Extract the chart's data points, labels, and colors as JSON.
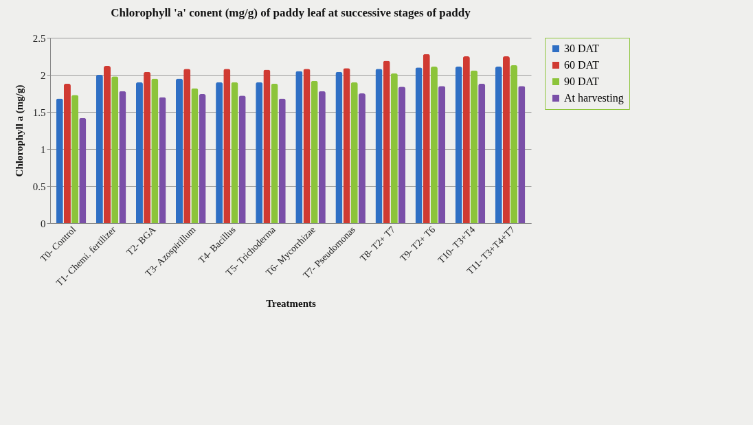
{
  "chart_data": {
    "type": "bar",
    "title": "Chlorophyll 'a'  conent (mg/g) of paddy leaf at successive stages of paddy",
    "xlabel": "Treatments",
    "ylabel": "Chlorophyll   a (mg/g)",
    "categories": [
      "T0- Control",
      "T1- Chemi. fertilizer",
      "T2- BGA",
      "T3- Azospirillum",
      "T4- Bacillus",
      "T5- Trichoderma",
      "T6- Mycorrhizae",
      "T7- Pseudomonas",
      "T8- T2+ T7",
      "T9- T2+ T6",
      "T10- T3+T4",
      "T11- T3+T4+T7"
    ],
    "series": [
      {
        "name": "30 DAT",
        "color": "#2f6fc4",
        "values": [
          1.68,
          2.0,
          1.9,
          1.95,
          1.9,
          1.9,
          2.05,
          2.04,
          2.08,
          2.1,
          2.11,
          2.11
        ]
      },
      {
        "name": "60 DAT",
        "color": "#d03a32",
        "values": [
          1.88,
          2.12,
          2.04,
          2.08,
          2.08,
          2.07,
          2.08,
          2.09,
          2.19,
          2.28,
          2.25,
          2.25
        ]
      },
      {
        "name": "90 DAT",
        "color": "#8cc43a",
        "values": [
          1.73,
          1.98,
          1.95,
          1.82,
          1.9,
          1.88,
          1.92,
          1.9,
          2.02,
          2.11,
          2.06,
          2.13
        ]
      },
      {
        "name": "At harvesting",
        "color": "#7a4fa8",
        "values": [
          1.42,
          1.78,
          1.7,
          1.74,
          1.72,
          1.68,
          1.78,
          1.75,
          1.84,
          1.85,
          1.88,
          1.85
        ]
      }
    ],
    "ylim": [
      0,
      2.5
    ],
    "yticks": [
      0,
      0.5,
      1,
      1.5,
      2,
      2.5
    ],
    "grid": "y",
    "legend": "right"
  }
}
